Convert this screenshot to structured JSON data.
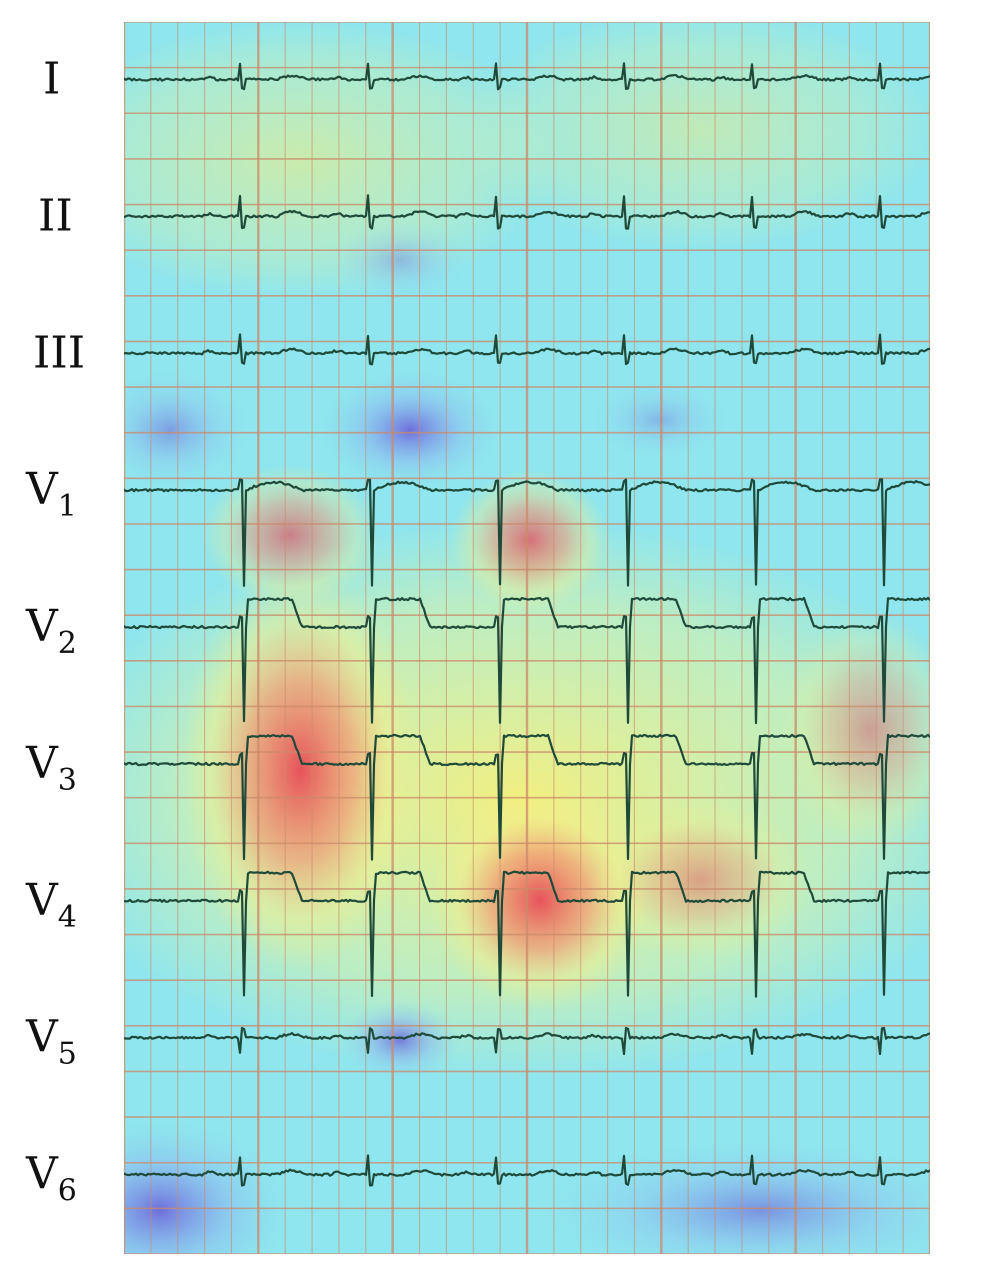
{
  "leads": [
    {
      "id": "I",
      "name": "I",
      "sub": "",
      "elevated": false,
      "deep_s": false,
      "inverted": false,
      "amp": 0.35
    },
    {
      "id": "II",
      "name": "II",
      "sub": "",
      "elevated": false,
      "deep_s": false,
      "inverted": false,
      "amp": 0.45
    },
    {
      "id": "III",
      "name": "III",
      "sub": "",
      "elevated": false,
      "deep_s": false,
      "inverted": false,
      "amp": 0.4
    },
    {
      "id": "V1",
      "name": "V",
      "sub": "1",
      "elevated": false,
      "deep_s": true,
      "inverted": false,
      "amp": 1.0
    },
    {
      "id": "V2",
      "name": "V",
      "sub": "2",
      "elevated": true,
      "deep_s": true,
      "inverted": false,
      "amp": 1.0
    },
    {
      "id": "V3",
      "name": "V",
      "sub": "3",
      "elevated": true,
      "deep_s": true,
      "inverted": false,
      "amp": 1.0
    },
    {
      "id": "V4",
      "name": "V",
      "sub": "4",
      "elevated": true,
      "deep_s": true,
      "inverted": false,
      "amp": 1.0
    },
    {
      "id": "V5",
      "name": "V",
      "sub": "5",
      "elevated": false,
      "deep_s": false,
      "inverted": true,
      "amp": 0.35
    },
    {
      "id": "V6",
      "name": "V",
      "sub": "6",
      "elevated": false,
      "deep_s": false,
      "inverted": false,
      "amp": 0.4
    }
  ],
  "beats_per_lead": 6,
  "colors": {
    "grid": "#c98a6a",
    "trace": "#1f4a3a",
    "heat_cool": "#7fe0f0",
    "heat_warm": "#f5f08a",
    "heat_hot": "#e8505a",
    "heat_cold": "#7a6ee0"
  }
}
